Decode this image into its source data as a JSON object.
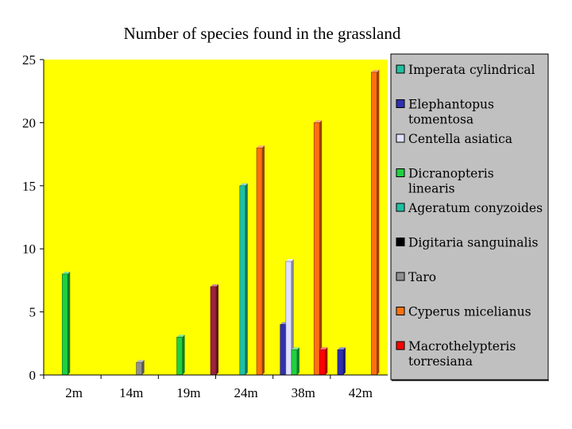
{
  "chart_data": {
    "type": "bar",
    "title": "Number of species found in the grassland",
    "xlabel": "",
    "ylabel": "",
    "categories": [
      "2m",
      "14m",
      "19m",
      "24m",
      "38m",
      "42m"
    ],
    "ylim": [
      0,
      25
    ],
    "yticks": [
      0,
      5,
      10,
      15,
      20,
      25
    ],
    "grid": false,
    "legend_position": "right",
    "plot_background": "#ffff00",
    "legend_background": "#c0c0c0",
    "series": [
      {
        "name": "Imperata cylindrical",
        "color": "#20c0a0",
        "values": [
          0,
          0,
          0,
          0,
          0,
          0
        ]
      },
      {
        "name": "Elephantopus tomentosa",
        "color": "#3030b0",
        "values": [
          0,
          0,
          0,
          0,
          4,
          2
        ]
      },
      {
        "name": "Centella asiatica",
        "color": "#e0e0ff",
        "values": [
          0,
          0,
          0,
          0,
          9,
          0
        ]
      },
      {
        "name": "Dicranopteris linearis",
        "color": "#20d040",
        "values": [
          8,
          0,
          3,
          0,
          2,
          0
        ]
      },
      {
        "name": "Ageratum conyzoides",
        "color": "#20c0a0",
        "values": [
          0,
          0,
          0,
          15,
          0,
          0
        ]
      },
      {
        "name": "Digitaria sanguinalis",
        "color": "#000000",
        "values": [
          0,
          0,
          0,
          0,
          0,
          0
        ]
      },
      {
        "name": "Taro",
        "color": "#909090",
        "values": [
          0,
          1,
          0,
          0,
          0,
          0
        ]
      },
      {
        "name": "Cyperus micelianus",
        "color": "#ff7010",
        "values": [
          0,
          0,
          0,
          18,
          20,
          24
        ]
      },
      {
        "name": "Macrothelypteris torresiana",
        "color": "#ff0000",
        "values": [
          0,
          0,
          0,
          0,
          2,
          0
        ]
      },
      {
        "name": "",
        "color": "#a02040",
        "values": [
          0,
          0,
          7,
          0,
          0,
          0
        ]
      }
    ]
  }
}
